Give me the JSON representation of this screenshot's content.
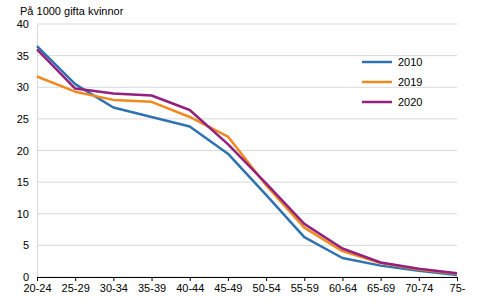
{
  "chart_data": {
    "type": "line",
    "y_label": "På 1000 gifta kvinnor",
    "categories": [
      "20-24",
      "25-29",
      "30-34",
      "35-39",
      "40-44",
      "45-49",
      "50-54",
      "55-59",
      "60-64",
      "65-69",
      "70-74",
      "75-"
    ],
    "series": [
      {
        "name": "2010",
        "color": "#2f72b0",
        "values": [
          36.5,
          30.5,
          26.8,
          25.3,
          23.8,
          19.5,
          13,
          6.3,
          3,
          1.8,
          1,
          0.3
        ]
      },
      {
        "name": "2019",
        "color": "#ef8a1f",
        "values": [
          31.7,
          29.3,
          28,
          27.7,
          25.3,
          22.2,
          14.5,
          7.8,
          4.1,
          2.2,
          1.2,
          0.5
        ]
      },
      {
        "name": "2020",
        "color": "#94207f",
        "values": [
          36,
          29.8,
          29,
          28.7,
          26.4,
          21,
          14.8,
          8.4,
          4.5,
          2.3,
          1.3,
          0.6
        ]
      }
    ],
    "ylim": [
      0,
      40
    ],
    "yticks": [
      0,
      5,
      10,
      15,
      20,
      25,
      30,
      35,
      40
    ],
    "grid": true,
    "legend": "upper right"
  }
}
